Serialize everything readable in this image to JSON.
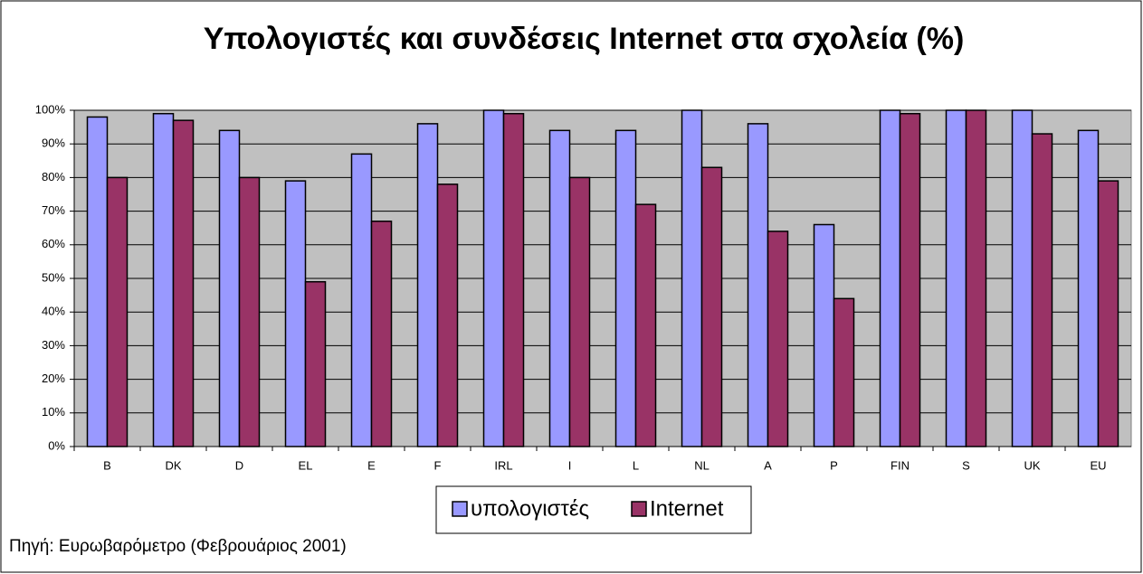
{
  "chart_data": {
    "type": "bar",
    "title": "Υπολογιστές και συνδέσεις Internet στα σχολεία (%)",
    "categories": [
      "B",
      "DK",
      "D",
      "EL",
      "E",
      "F",
      "IRL",
      "I",
      "L",
      "NL",
      "A",
      "P",
      "FIN",
      "S",
      "UK",
      "EU"
    ],
    "series": [
      {
        "name": "υπολογιστές",
        "color": "#9999ff",
        "values": [
          98,
          99,
          94,
          79,
          87,
          96,
          100,
          94,
          94,
          100,
          96,
          66,
          100,
          100,
          100,
          94
        ]
      },
      {
        "name": "Internet",
        "color": "#993366",
        "values": [
          80,
          97,
          80,
          49,
          67,
          78,
          99,
          80,
          72,
          83,
          64,
          44,
          99,
          100,
          93,
          79
        ]
      }
    ],
    "ylim": [
      0,
      100
    ],
    "yticks": [
      {
        "value": 0,
        "label": "0%"
      },
      {
        "value": 10,
        "label": "10%"
      },
      {
        "value": 20,
        "label": "20%"
      },
      {
        "value": 30,
        "label": "30%"
      },
      {
        "value": 40,
        "label": "40%"
      },
      {
        "value": 50,
        "label": "50%"
      },
      {
        "value": 60,
        "label": "60%"
      },
      {
        "value": 70,
        "label": "70%"
      },
      {
        "value": 80,
        "label": "80%"
      },
      {
        "value": 90,
        "label": "90%"
      },
      {
        "value": 100,
        "label": "100%"
      }
    ],
    "grid": true,
    "legend": "bottom",
    "source": "Πηγή: Ευρωβαρόμετρο (Φεβρουάριος 2001)"
  }
}
